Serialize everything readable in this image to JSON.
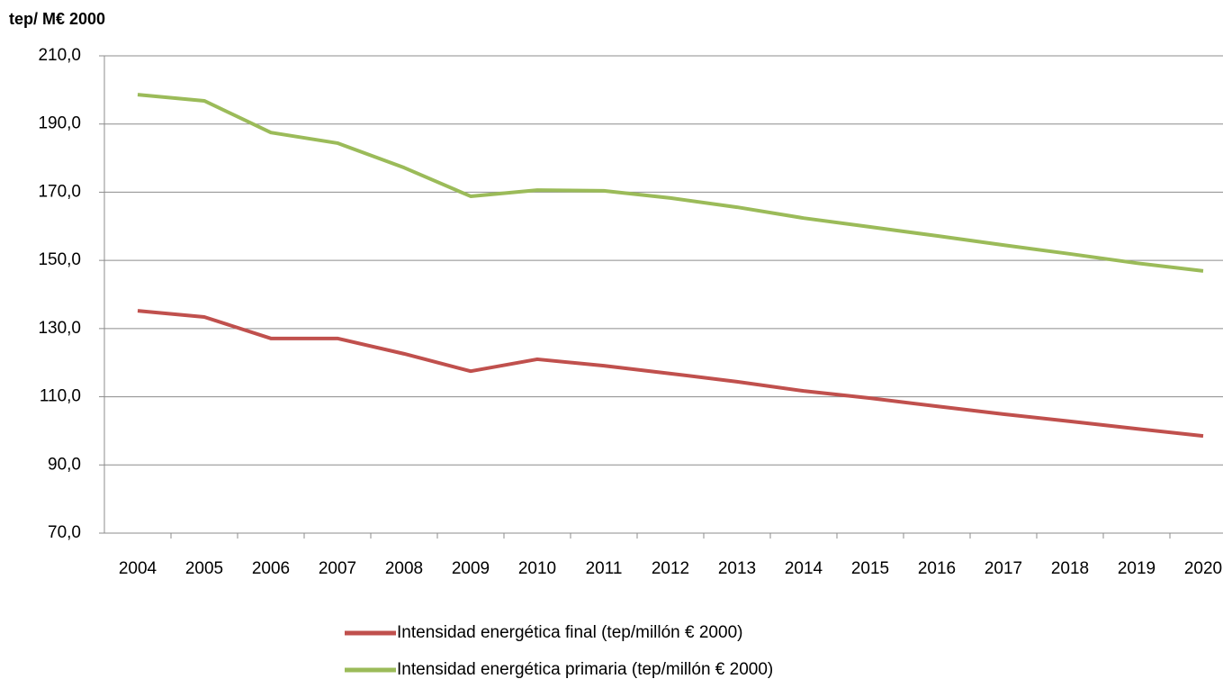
{
  "chart_data": {
    "type": "line",
    "y_axis_label": "tep/ M€ 2000",
    "categories": [
      "2004",
      "2005",
      "2006",
      "2007",
      "2008",
      "2009",
      "2010",
      "2011",
      "2012",
      "2013",
      "2014",
      "2015",
      "2016",
      "2017",
      "2018",
      "2019",
      "2020"
    ],
    "series": [
      {
        "name": "Intensidad energética final (tep/millón € 2000)",
        "color": "#c0504d",
        "values": [
          135.2,
          133.4,
          127.1,
          127.1,
          122.6,
          117.5,
          121.0,
          119.1,
          116.8,
          114.4,
          111.7,
          109.6,
          107.2,
          104.9,
          102.8,
          100.6,
          98.5
        ]
      },
      {
        "name": "Intensidad energética primaria (tep/millón € 2000)",
        "color": "#9bbb59",
        "values": [
          198.6,
          196.8,
          187.5,
          184.4,
          177.2,
          168.8,
          170.6,
          170.4,
          168.3,
          165.6,
          162.4,
          159.8,
          157.2,
          154.5,
          151.9,
          149.2,
          146.9
        ]
      }
    ],
    "ylim": [
      70,
      210
    ],
    "yticks": [
      {
        "value": 70,
        "label": "70,0"
      },
      {
        "value": 90,
        "label": "90,0"
      },
      {
        "value": 110,
        "label": "110,0"
      },
      {
        "value": 130,
        "label": "130,0"
      },
      {
        "value": 150,
        "label": "150,0"
      },
      {
        "value": 170,
        "label": "170,0"
      },
      {
        "value": 190,
        "label": "190,0"
      },
      {
        "value": 210,
        "label": "210,0"
      }
    ],
    "grid": true,
    "legend": "bottom"
  }
}
